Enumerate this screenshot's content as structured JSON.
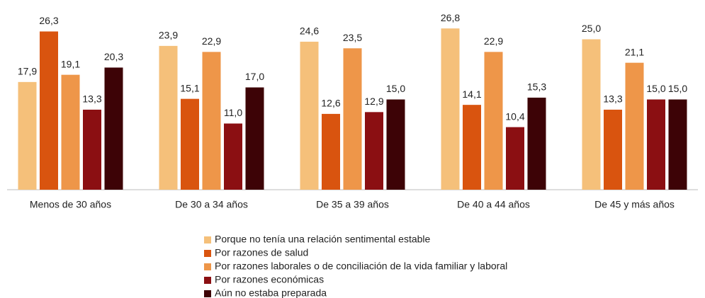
{
  "chart_data": {
    "type": "bar",
    "categories": [
      "Menos de 30 años",
      "De 30 a 34 años",
      "De 35 a 39 años",
      "De 40 a 44 años",
      "De 45 y más años"
    ],
    "series": [
      {
        "name": "Porque no tenía una relación sentimental estable",
        "color": "#f5c07a",
        "values": [
          17.9,
          23.9,
          24.6,
          26.8,
          25.0
        ],
        "value_labels": [
          "17,9",
          "23,9",
          "24,6",
          "26,8",
          "25,0"
        ]
      },
      {
        "name": "Por razones de salud",
        "color": "#d9540f",
        "values": [
          26.3,
          15.1,
          12.6,
          14.1,
          13.3
        ],
        "value_labels": [
          "26,3",
          "15,1",
          "12,6",
          "14,1",
          "13,3"
        ]
      },
      {
        "name": "Por razones laborales o de conciliación de la vida familiar y laboral",
        "color": "#ee9649",
        "values": [
          19.1,
          22.9,
          23.5,
          22.9,
          21.1
        ],
        "value_labels": [
          "19,1",
          "22,9",
          "23,5",
          "22,9",
          "21,1"
        ]
      },
      {
        "name": "Por razones económicas",
        "color": "#8b0f12",
        "values": [
          13.3,
          11.0,
          12.9,
          10.4,
          15.0
        ],
        "value_labels": [
          "13,3",
          "11,0",
          "12,9",
          "10,4",
          "15,0"
        ]
      },
      {
        "name": "Aún no estaba preparada",
        "color": "#3d0306",
        "values": [
          20.3,
          17.0,
          15.0,
          15.3,
          15.0
        ],
        "value_labels": [
          "20,3",
          "17,0",
          "15,0",
          "15,3",
          "15,0"
        ]
      }
    ],
    "ylim": [
      0,
      30
    ]
  }
}
